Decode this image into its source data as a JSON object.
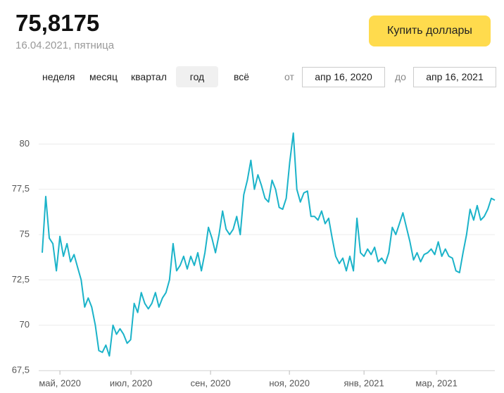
{
  "header": {
    "price": "75,8175",
    "date": "16.04.2021, пятница",
    "button": "Купить доллары"
  },
  "periods": [
    "неделя",
    "месяц",
    "квартал",
    "год",
    "всё"
  ],
  "selected_period": 3,
  "range": {
    "from_label": "от",
    "from_date": "апр 16, 2020",
    "to_label": "до",
    "to_date": "апр 16, 2021"
  },
  "chart_data": {
    "type": "line",
    "color": "#1bb3c9",
    "grid": true,
    "ylim": [
      67.5,
      82
    ],
    "yticks": [
      {
        "value": 67.5,
        "label": "67,5"
      },
      70,
      {
        "value": 72.5,
        "label": "72,5"
      },
      75,
      {
        "value": 77.5,
        "label": "77,5"
      },
      80
    ],
    "xlim": [
      0,
      128
    ],
    "xticks": [
      {
        "value": 5,
        "label": "май, 2020"
      },
      {
        "value": 25.1,
        "label": "июл, 2020"
      },
      {
        "value": 47.6,
        "label": "сен, 2020"
      },
      {
        "value": 69.9,
        "label": "ноя, 2020"
      },
      {
        "value": 91,
        "label": "янв, 2021"
      },
      {
        "value": 111.5,
        "label": "мар, 2021"
      }
    ],
    "values": [
      74.0,
      77.1,
      74.8,
      74.5,
      73.0,
      74.9,
      73.8,
      74.5,
      73.5,
      73.9,
      73.2,
      72.5,
      71.0,
      71.5,
      71.0,
      70.0,
      68.6,
      68.5,
      68.9,
      68.3,
      70.0,
      69.5,
      69.8,
      69.5,
      69.0,
      69.2,
      71.2,
      70.7,
      71.8,
      71.2,
      70.9,
      71.2,
      71.8,
      71.0,
      71.5,
      71.8,
      72.5,
      74.5,
      73.0,
      73.3,
      73.8,
      73.1,
      73.8,
      73.3,
      74.0,
      73.0,
      74.0,
      75.4,
      74.8,
      74.0,
      75.0,
      76.3,
      75.3,
      75.0,
      75.3,
      76.0,
      75.0,
      77.2,
      78.0,
      79.1,
      77.5,
      78.3,
      77.7,
      77.0,
      76.8,
      78.0,
      77.5,
      76.5,
      76.4,
      77.0,
      79.0,
      80.6,
      77.5,
      76.8,
      77.3,
      77.4,
      76.0,
      76.0,
      75.8,
      76.3,
      75.6,
      75.9,
      74.8,
      73.8,
      73.4,
      73.7,
      73.0,
      73.8,
      73.0,
      75.9,
      74.0,
      73.8,
      74.2,
      73.9,
      74.3,
      73.5,
      73.7,
      73.4,
      74.0,
      75.4,
      75.0,
      75.6,
      76.2,
      75.4,
      74.6,
      73.6,
      74.0,
      73.5,
      73.9,
      74.0,
      74.2,
      73.9,
      74.6,
      73.8,
      74.2,
      73.8,
      73.7,
      73.0,
      72.9,
      74.0,
      75.0,
      76.4,
      75.8,
      76.6,
      75.8,
      76.0,
      76.4,
      77.0,
      76.9
    ]
  }
}
